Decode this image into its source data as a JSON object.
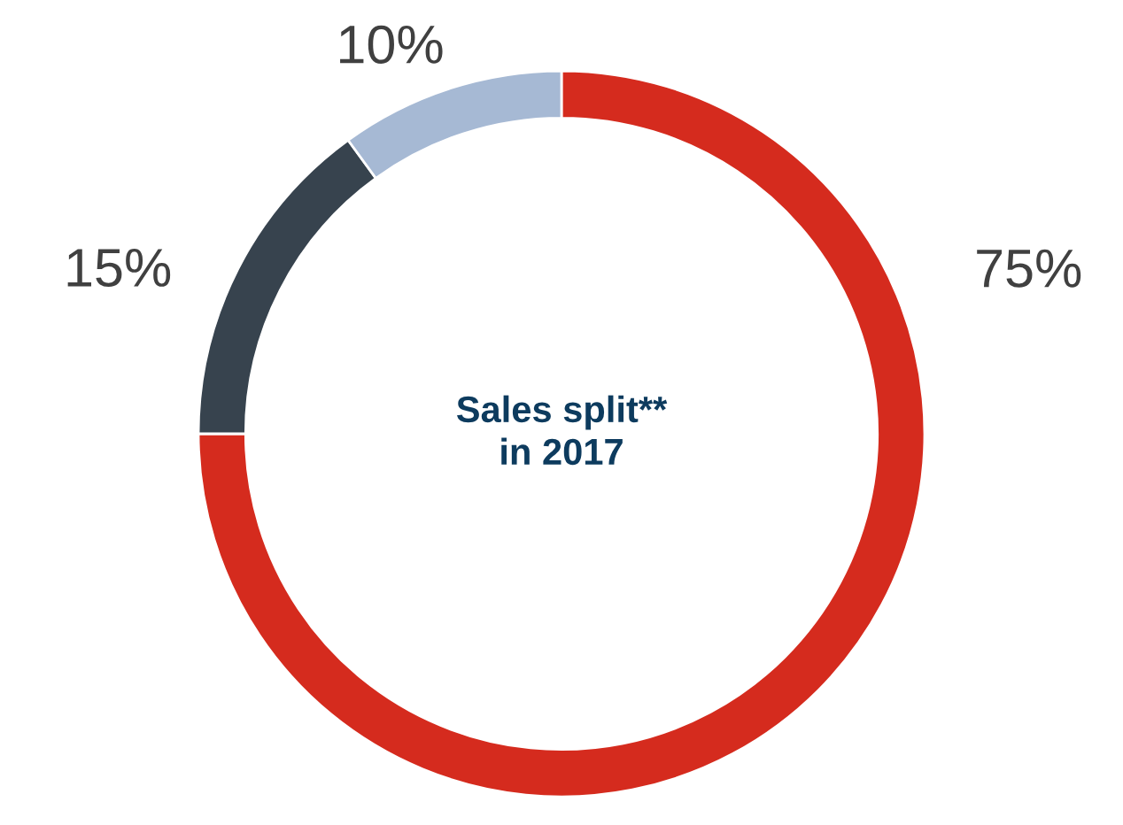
{
  "chart_data": {
    "type": "donut",
    "title": "Sales split**\nin 2017",
    "categories": [
      null,
      null,
      null
    ],
    "values": [
      75,
      15,
      10
    ],
    "colors": [
      "#d52b1e",
      "#37434e",
      "#a6b9d4"
    ],
    "value_labels": [
      "75%",
      "15%",
      "10%"
    ],
    "legend": false
  }
}
